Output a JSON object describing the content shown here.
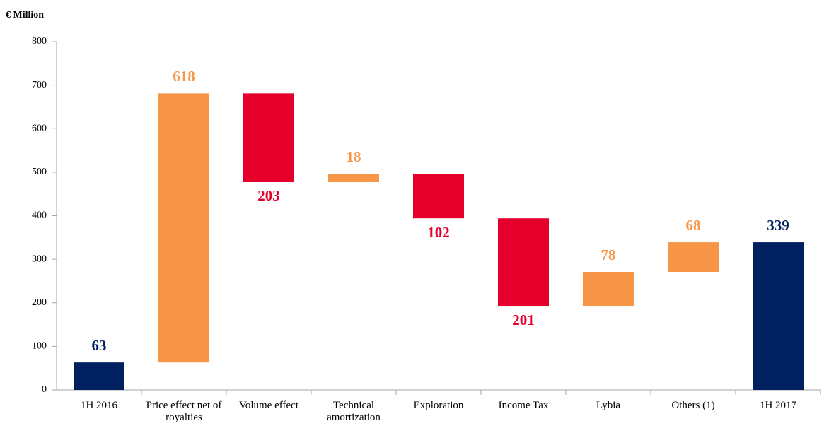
{
  "chart_data": {
    "type": "waterfall",
    "y_label": "€ Million",
    "categories": [
      "1H 2016",
      "Price effect net of royalties",
      "Volume effect",
      "Technical amortization",
      "Exploration",
      "Income Tax",
      "Lybia",
      "Others (1)",
      "1H 2017"
    ],
    "values": [
      63,
      618,
      -203,
      18,
      -102,
      -201,
      78,
      68,
      339
    ],
    "value_labels": [
      "63",
      "618",
      "203",
      "18",
      "102",
      "201",
      "78",
      "68",
      "339"
    ],
    "colors": [
      "#002060",
      "#f79646",
      "#e4002b",
      "#f79646",
      "#e4002b",
      "#e4002b",
      "#f79646",
      "#f79646",
      "#002060"
    ],
    "ylim": [
      0,
      800
    ],
    "yticks": [
      0,
      100,
      200,
      300,
      400,
      500,
      600,
      700,
      800
    ],
    "grid": false
  }
}
